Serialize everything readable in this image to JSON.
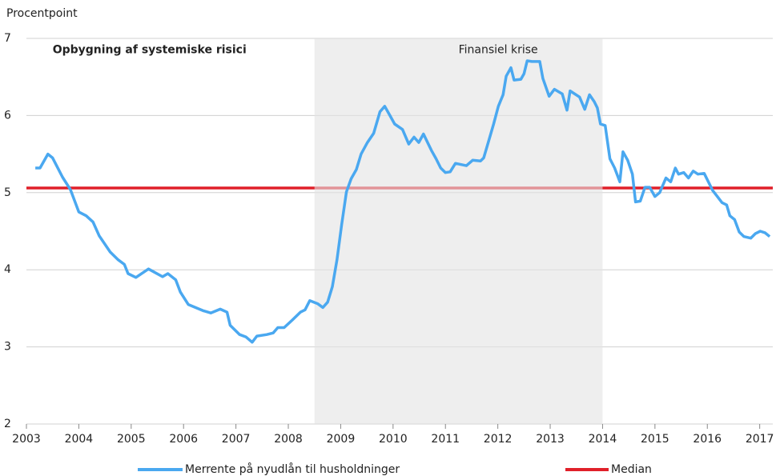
{
  "chart_data": {
    "type": "line",
    "y_label": "Procentpoint",
    "annotations": [
      {
        "text": "Opbygning af systemiske risici",
        "x": 2003.5,
        "y": 6.85,
        "bold": true
      },
      {
        "text": "Finansiel krise",
        "x": 2011.25,
        "y": 6.85,
        "bold": false
      }
    ],
    "shaded_region": [
      2008.5,
      2014
    ],
    "shade_color": "#e3e3e3",
    "xlim": [
      2003,
      2017.25
    ],
    "xticks": [
      2003,
      2004,
      2005,
      2006,
      2007,
      2008,
      2009,
      2010,
      2011,
      2012,
      2013,
      2014,
      2015,
      2016,
      2017
    ],
    "ylim": [
      2,
      7
    ],
    "yticks": [
      2,
      3,
      4,
      5,
      6,
      7
    ],
    "grid": true,
    "legend": "bottom",
    "median": {
      "name": "Median",
      "color": "#e0202a",
      "value": 5.06
    },
    "series": [
      {
        "name": "Merrente på nyudlån til husholdninger",
        "color": "#4aa8f0",
        "x": [
          2003.17,
          2003.26,
          2003.41,
          2003.5,
          2003.69,
          2003.84,
          2004.0,
          2004.14,
          2004.27,
          2004.39,
          2004.6,
          2004.75,
          2004.87,
          2004.94,
          2005.09,
          2005.33,
          2005.6,
          2005.7,
          2005.85,
          2005.94,
          2006.09,
          2006.37,
          2006.52,
          2006.7,
          2006.83,
          2006.89,
          2007.07,
          2007.19,
          2007.31,
          2007.4,
          2007.59,
          2007.71,
          2007.8,
          2007.92,
          2008.08,
          2008.23,
          2008.32,
          2008.41,
          2008.56,
          2008.66,
          2008.75,
          2008.84,
          2008.93,
          2009.02,
          2009.11,
          2009.2,
          2009.3,
          2009.39,
          2009.51,
          2009.63,
          2009.75,
          2009.84,
          2009.94,
          2010.03,
          2010.18,
          2010.3,
          2010.4,
          2010.49,
          2010.58,
          2010.73,
          2010.82,
          2010.91,
          2011.0,
          2011.09,
          2011.19,
          2011.4,
          2011.52,
          2011.67,
          2011.73,
          2011.83,
          2011.92,
          2012.01,
          2012.1,
          2012.16,
          2012.25,
          2012.31,
          2012.44,
          2012.5,
          2012.56,
          2012.65,
          2012.8,
          2012.86,
          2012.98,
          2013.08,
          2013.23,
          2013.32,
          2013.38,
          2013.56,
          2013.66,
          2013.75,
          2013.84,
          2013.9,
          2013.96,
          2014.05,
          2014.14,
          2014.23,
          2014.33,
          2014.39,
          2014.48,
          2014.57,
          2014.63,
          2014.72,
          2014.81,
          2014.9,
          2015.0,
          2015.09,
          2015.21,
          2015.3,
          2015.39,
          2015.45,
          2015.55,
          2015.64,
          2015.73,
          2015.82,
          2015.94,
          2016.1,
          2016.19,
          2016.28,
          2016.37,
          2016.43,
          2016.52,
          2016.61,
          2016.7,
          2016.83,
          2016.92,
          2017.01,
          2017.1,
          2017.19
        ],
        "values": [
          5.32,
          5.32,
          5.5,
          5.45,
          5.2,
          5.04,
          4.75,
          4.7,
          4.62,
          4.44,
          4.23,
          4.13,
          4.07,
          3.95,
          3.9,
          4.01,
          3.91,
          3.95,
          3.87,
          3.71,
          3.55,
          3.47,
          3.44,
          3.49,
          3.45,
          3.28,
          3.16,
          3.13,
          3.06,
          3.14,
          3.16,
          3.18,
          3.25,
          3.25,
          3.35,
          3.45,
          3.48,
          3.6,
          3.56,
          3.51,
          3.58,
          3.78,
          4.13,
          4.59,
          5.01,
          5.18,
          5.3,
          5.5,
          5.65,
          5.77,
          6.05,
          6.12,
          6.0,
          5.89,
          5.82,
          5.63,
          5.72,
          5.65,
          5.76,
          5.55,
          5.44,
          5.32,
          5.26,
          5.27,
          5.38,
          5.35,
          5.42,
          5.41,
          5.45,
          5.68,
          5.89,
          6.12,
          6.27,
          6.51,
          6.62,
          6.46,
          6.47,
          6.54,
          6.71,
          6.7,
          6.7,
          6.48,
          6.25,
          6.34,
          6.28,
          6.07,
          6.32,
          6.24,
          6.08,
          6.27,
          6.18,
          6.1,
          5.89,
          5.87,
          5.44,
          5.32,
          5.14,
          5.53,
          5.42,
          5.24,
          4.88,
          4.89,
          5.07,
          5.07,
          4.95,
          5.0,
          5.19,
          5.14,
          5.32,
          5.24,
          5.26,
          5.19,
          5.28,
          5.24,
          5.25,
          5.03,
          4.95,
          4.87,
          4.84,
          4.7,
          4.65,
          4.49,
          4.43,
          4.41,
          4.47,
          4.5,
          4.48,
          4.43
        ]
      }
    ]
  }
}
